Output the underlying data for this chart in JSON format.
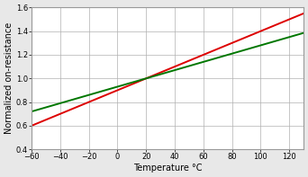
{
  "title": "",
  "xlabel": "Temperature °C",
  "ylabel": "Normalized on-resistance",
  "xlim": [
    -60,
    130
  ],
  "ylim": [
    0.4,
    1.6
  ],
  "xticks": [
    -60,
    -40,
    -20,
    0,
    20,
    40,
    60,
    80,
    100,
    120
  ],
  "yticks": [
    0.4,
    0.6,
    0.8,
    1.0,
    1.2,
    1.4,
    1.6
  ],
  "red_coeff": 0.005,
  "green_coeff": 0.0035,
  "t_ref": 20,
  "r_ref": 1.0,
  "red_color": "#dd0000",
  "green_color": "#007700",
  "line_width": 1.4,
  "grid_color": "#b0b0b0",
  "plot_bg": "#ffffff",
  "fig_bg": "#e8e8e8",
  "border_color": "#999999",
  "xlabel_fontsize": 7,
  "ylabel_fontsize": 7,
  "tick_fontsize": 6
}
